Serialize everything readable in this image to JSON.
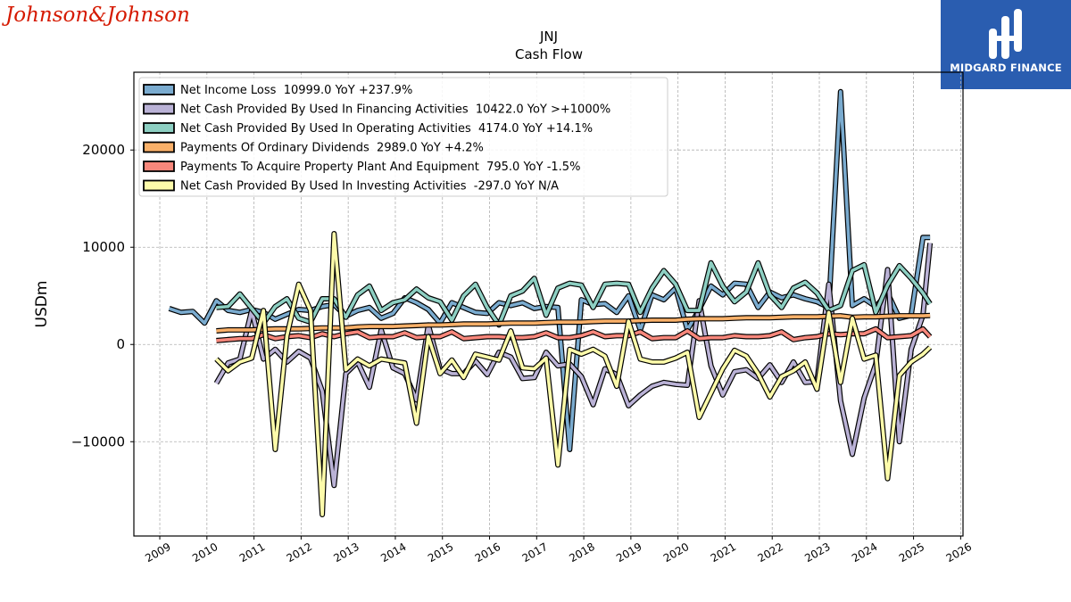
{
  "brand": {
    "left_logo": "Johnson&Johnson",
    "right_logo": "MIDGARD FINANCE"
  },
  "chart_data": {
    "type": "line",
    "title": "JNJ",
    "subtitle": "Cash Flow",
    "xlabel": "",
    "ylabel": "USDm",
    "x_tick_labels": [
      "2009",
      "2010",
      "2011",
      "2012",
      "2013",
      "2014",
      "2015",
      "2016",
      "2017",
      "2018",
      "2019",
      "2020",
      "2021",
      "2022",
      "2023",
      "2024",
      "2025",
      "2026"
    ],
    "xlim": [
      2008.45,
      2026.05
    ],
    "ylim": [
      -19700,
      28000
    ],
    "yticks": [
      -10000,
      0,
      10000,
      20000
    ],
    "y_tick_labels": [
      "−10000",
      "0",
      "10000",
      "20000"
    ],
    "grid": true,
    "legend_position": "top-left",
    "series": [
      {
        "name": "Net Income Loss  10999.0 YoY +237.9%",
        "color": "#7aabcf",
        "x": [
          2009.2,
          2009.45,
          2009.7,
          2009.95,
          2010.2,
          2010.45,
          2010.7,
          2010.95,
          2011.2,
          2011.45,
          2011.7,
          2011.95,
          2012.2,
          2012.45,
          2012.7,
          2012.95,
          2013.2,
          2013.45,
          2013.7,
          2013.95,
          2014.2,
          2014.45,
          2014.7,
          2014.95,
          2015.2,
          2015.45,
          2015.7,
          2015.95,
          2016.2,
          2016.45,
          2016.7,
          2016.95,
          2017.2,
          2017.45,
          2017.7,
          2017.95,
          2018.2,
          2018.45,
          2018.7,
          2018.95,
          2019.2,
          2019.45,
          2019.7,
          2019.95,
          2020.2,
          2020.45,
          2020.7,
          2020.95,
          2021.2,
          2021.45,
          2021.7,
          2021.95,
          2022.2,
          2022.45,
          2022.7,
          2022.95,
          2023.2,
          2023.45,
          2023.7,
          2023.95,
          2024.2,
          2024.45,
          2024.7,
          2024.95,
          2025.2,
          2025.35
        ],
        "values": [
          3700,
          3300,
          3400,
          2200,
          4500,
          3500,
          3300,
          3600,
          3300,
          2600,
          3100,
          3600,
          3500,
          3900,
          4100,
          2900,
          3500,
          3800,
          2700,
          3200,
          4800,
          4300,
          3600,
          2200,
          4300,
          3800,
          3300,
          3200,
          4300,
          4000,
          4300,
          3700,
          3900,
          3800,
          -10800,
          4600,
          4100,
          4200,
          3300,
          5000,
          1500,
          5100,
          4600,
          5800,
          1500,
          3600,
          6000,
          5100,
          6300,
          6200,
          3800,
          5400,
          4800,
          5100,
          4700,
          4400,
          3800,
          26000,
          4000,
          4700,
          3900,
          5300,
          2700,
          3000,
          11000,
          10999
        ]
      },
      {
        "name": "Net Cash Provided By Used In Financing Activities  10422.0 YoY >+1000%",
        "color": "#bab2d6",
        "x": [
          2010.2,
          2010.45,
          2010.7,
          2010.95,
          2011.2,
          2011.45,
          2011.7,
          2011.95,
          2012.2,
          2012.45,
          2012.7,
          2012.95,
          2013.2,
          2013.45,
          2013.7,
          2013.95,
          2014.2,
          2014.45,
          2014.7,
          2014.95,
          2015.2,
          2015.45,
          2015.7,
          2015.95,
          2016.2,
          2016.45,
          2016.7,
          2016.95,
          2017.2,
          2017.45,
          2017.7,
          2017.95,
          2018.2,
          2018.45,
          2018.7,
          2018.95,
          2019.2,
          2019.45,
          2019.7,
          2019.95,
          2020.2,
          2020.45,
          2020.7,
          2020.95,
          2021.2,
          2021.45,
          2021.7,
          2021.95,
          2022.2,
          2022.45,
          2022.7,
          2022.95,
          2023.2,
          2023.45,
          2023.7,
          2023.95,
          2024.2,
          2024.45,
          2024.7,
          2024.95,
          2025.2,
          2025.35
        ],
        "values": [
          -4000,
          -1900,
          -1500,
          3500,
          -1500,
          -500,
          -1800,
          -700,
          -1400,
          -4800,
          -14500,
          -3000,
          -1800,
          -4400,
          1500,
          -2400,
          -3000,
          -5700,
          2000,
          -2500,
          -3000,
          -3000,
          -1700,
          -3100,
          -800,
          -1300,
          -3500,
          -3400,
          -800,
          -2200,
          -2000,
          -3300,
          -6200,
          -2500,
          -3100,
          -6300,
          -5200,
          -4300,
          -3900,
          -4100,
          -4200,
          4500,
          -2200,
          -5200,
          -2800,
          -2600,
          -3500,
          -2100,
          -3900,
          -1800,
          -3900,
          -3800,
          6200,
          -5800,
          -11300,
          -5500,
          -2000,
          7700,
          -10000,
          -500,
          3000,
          10422
        ]
      },
      {
        "name": "Net Cash Provided By Used In Operating Activities  4174.0 YoY +14.1%",
        "color": "#8dcfc2",
        "x": [
          2010.2,
          2010.45,
          2010.7,
          2010.95,
          2011.2,
          2011.45,
          2011.7,
          2011.95,
          2012.2,
          2012.45,
          2012.7,
          2012.95,
          2013.2,
          2013.45,
          2013.7,
          2013.95,
          2014.2,
          2014.45,
          2014.7,
          2014.95,
          2015.2,
          2015.45,
          2015.7,
          2015.95,
          2016.2,
          2016.45,
          2016.7,
          2016.95,
          2017.2,
          2017.45,
          2017.7,
          2017.95,
          2018.2,
          2018.45,
          2018.7,
          2018.95,
          2019.2,
          2019.45,
          2019.7,
          2019.95,
          2020.2,
          2020.45,
          2020.7,
          2020.95,
          2021.2,
          2021.45,
          2021.7,
          2021.95,
          2022.2,
          2022.45,
          2022.7,
          2022.95,
          2023.2,
          2023.45,
          2023.7,
          2023.95,
          2024.2,
          2024.45,
          2024.7,
          2024.95,
          2025.2,
          2025.35
        ],
        "values": [
          3800,
          3900,
          5200,
          3700,
          2200,
          3900,
          4700,
          2700,
          2300,
          4700,
          4700,
          2800,
          5100,
          6000,
          3500,
          4300,
          4600,
          5700,
          4800,
          4400,
          2500,
          5000,
          6200,
          3800,
          2000,
          5000,
          5500,
          6800,
          3000,
          5800,
          6300,
          6100,
          3800,
          6200,
          6300,
          6200,
          3300,
          5800,
          7600,
          6200,
          3500,
          3500,
          8400,
          6000,
          4400,
          5400,
          8400,
          5100,
          3800,
          5800,
          6400,
          5300,
          3500,
          4000,
          7600,
          8200,
          3300,
          6100,
          8100,
          6800,
          5300,
          4174
        ]
      },
      {
        "name": "Payments Of Ordinary Dividends  2989.0 YoY +4.2%",
        "color": "#f9b069",
        "x": [
          2010.2,
          2010.45,
          2010.7,
          2010.95,
          2011.2,
          2011.45,
          2011.7,
          2011.95,
          2012.2,
          2012.45,
          2012.7,
          2012.95,
          2013.2,
          2013.45,
          2013.7,
          2013.95,
          2014.2,
          2014.45,
          2014.7,
          2014.95,
          2015.2,
          2015.45,
          2015.7,
          2015.95,
          2016.2,
          2016.45,
          2016.7,
          2016.95,
          2017.2,
          2017.45,
          2017.7,
          2017.95,
          2018.2,
          2018.45,
          2018.7,
          2018.95,
          2019.2,
          2019.45,
          2019.7,
          2019.95,
          2020.2,
          2020.45,
          2020.7,
          2020.95,
          2021.2,
          2021.45,
          2021.7,
          2021.95,
          2022.2,
          2022.45,
          2022.7,
          2022.95,
          2023.2,
          2023.45,
          2023.7,
          2023.95,
          2024.2,
          2024.45,
          2024.7,
          2024.95,
          2025.2,
          2025.35
        ],
        "values": [
          1400,
          1500,
          1500,
          1500,
          1550,
          1600,
          1600,
          1600,
          1650,
          1700,
          1700,
          1700,
          1800,
          1850,
          1850,
          1850,
          1900,
          1950,
          2000,
          2000,
          2050,
          2100,
          2100,
          2100,
          2150,
          2200,
          2200,
          2200,
          2250,
          2300,
          2300,
          2300,
          2350,
          2400,
          2400,
          2400,
          2450,
          2500,
          2500,
          2500,
          2600,
          2650,
          2650,
          2650,
          2700,
          2750,
          2750,
          2750,
          2800,
          2850,
          2850,
          2850,
          2900,
          2950,
          2800,
          2850,
          2850,
          2900,
          2950,
          2950,
          2950,
          2989
        ]
      },
      {
        "name": "Payments To Acquire Property Plant And Equipment  795.0 YoY -1.5%",
        "color": "#f7877b",
        "x": [
          2010.2,
          2010.45,
          2010.7,
          2010.95,
          2011.2,
          2011.45,
          2011.7,
          2011.95,
          2012.2,
          2012.45,
          2012.7,
          2012.95,
          2013.2,
          2013.45,
          2013.7,
          2013.95,
          2014.2,
          2014.45,
          2014.7,
          2014.95,
          2015.2,
          2015.45,
          2015.7,
          2015.95,
          2016.2,
          2016.45,
          2016.7,
          2016.95,
          2017.2,
          2017.45,
          2017.7,
          2017.95,
          2018.2,
          2018.45,
          2018.7,
          2018.95,
          2019.2,
          2019.45,
          2019.7,
          2019.95,
          2020.2,
          2020.45,
          2020.7,
          2020.95,
          2021.2,
          2021.45,
          2021.7,
          2021.95,
          2022.2,
          2022.45,
          2022.7,
          2022.95,
          2023.2,
          2023.45,
          2023.7,
          2023.95,
          2024.2,
          2024.45,
          2024.7,
          2024.95,
          2025.2,
          2025.35
        ],
        "values": [
          400,
          500,
          600,
          600,
          1000,
          600,
          800,
          900,
          700,
          1100,
          800,
          1100,
          1300,
          700,
          800,
          800,
          1200,
          700,
          800,
          800,
          1300,
          600,
          700,
          800,
          800,
          700,
          700,
          800,
          1200,
          700,
          700,
          900,
          1300,
          800,
          900,
          900,
          1300,
          600,
          700,
          700,
          1400,
          600,
          700,
          700,
          900,
          800,
          800,
          900,
          1300,
          500,
          700,
          800,
          1100,
          1000,
          1100,
          1100,
          1600,
          700,
          800,
          900,
          1600,
          795
        ]
      },
      {
        "name": "Net Cash Provided By Used In Investing Activities  -297.0 YoY N/A",
        "color": "#fdfbaa",
        "x": [
          2010.2,
          2010.45,
          2010.7,
          2010.95,
          2011.2,
          2011.45,
          2011.7,
          2011.95,
          2012.2,
          2012.45,
          2012.7,
          2012.95,
          2013.2,
          2013.45,
          2013.7,
          2013.95,
          2014.2,
          2014.45,
          2014.7,
          2014.95,
          2015.2,
          2015.45,
          2015.7,
          2015.95,
          2016.2,
          2016.45,
          2016.7,
          2016.95,
          2017.2,
          2017.45,
          2017.7,
          2017.95,
          2018.2,
          2018.45,
          2018.7,
          2018.95,
          2019.2,
          2019.45,
          2019.7,
          2019.95,
          2020.2,
          2020.45,
          2020.7,
          2020.95,
          2021.2,
          2021.45,
          2021.7,
          2021.95,
          2022.2,
          2022.45,
          2022.7,
          2022.95,
          2023.2,
          2023.45,
          2023.7,
          2023.95,
          2024.2,
          2024.45,
          2024.7,
          2024.95,
          2025.2,
          2025.35
        ],
        "values": [
          -1500,
          -2700,
          -1800,
          -1400,
          3500,
          -10800,
          900,
          6200,
          3500,
          -17500,
          11400,
          -2600,
          -1500,
          -2200,
          -1500,
          -1700,
          -1900,
          -8100,
          800,
          -3000,
          -1600,
          -3400,
          -1000,
          -1300,
          -1600,
          1400,
          -2400,
          -2500,
          -1400,
          -12400,
          -500,
          -1000,
          -500,
          -1200,
          -4300,
          2400,
          -1500,
          -1800,
          -1800,
          -1400,
          -800,
          -7500,
          -5000,
          -2500,
          -600,
          -1200,
          -3000,
          -5400,
          -3300,
          -2700,
          -1800,
          -4600,
          3300,
          -3900,
          2700,
          -1500,
          -1100,
          -13800,
          -3200,
          -1800,
          -1000,
          -297
        ]
      }
    ]
  }
}
